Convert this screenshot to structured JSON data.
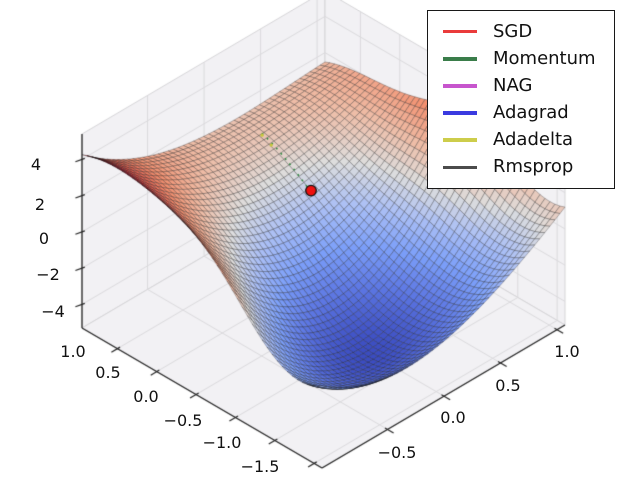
{
  "chart_data": {
    "type": "surface",
    "title": "",
    "description": "3D saddle-shaped loss surface with optimizer start point marker",
    "x_axis": {
      "ticks": [
        1.0,
        0.5,
        0.0,
        -0.5,
        -1.0,
        -1.5
      ],
      "tick_labels": [
        "1.0",
        "0.5",
        "0.0",
        "−0.5",
        "−1.0",
        "−1.5"
      ],
      "range": [
        -1.6,
        1.45
      ]
    },
    "y_axis": {
      "ticks": [
        -0.5,
        0.0,
        0.5,
        1.0
      ],
      "tick_labels": [
        "−0.5",
        "0.0",
        "0.5",
        "1.0"
      ],
      "range": [
        -1.08,
        1.07
      ]
    },
    "z_axis": {
      "ticks": [
        4,
        2,
        0,
        -2,
        -4
      ],
      "tick_labels": [
        "4",
        "2",
        "0",
        "−2",
        "−4"
      ],
      "range": [
        -5.3,
        5.4
      ]
    },
    "surface": {
      "model": "z = A(x)*(y-m(x))^2 + c3*y^3 + B(x);  A(x)=A_num/(1+A_k*(x+A_x0)^2);  m(x)=m_slope*x+m_offset;  B(x)=cubic(B)",
      "A_num": 4.8,
      "A_k": 0.8,
      "A_x0": 0.35,
      "m_slope": 0.2,
      "m_offset": -0.05,
      "y3_coeff": -0.55,
      "B": [
        -0.85,
        0.45,
        3.3,
        -1.9
      ],
      "mesh": 48,
      "colormap": "coolwarm"
    },
    "start_point": {
      "x": 0.45,
      "y": 0.25,
      "color": "#ee1111",
      "edge_color": "#101010",
      "radius": 5.3
    },
    "path_hints": [
      {
        "color": "#2c8a3e",
        "from": [
          0.45,
          0.25
        ],
        "to": [
          1.12,
          0.28
        ],
        "style": "dotted"
      },
      {
        "color": "#c9c93a",
        "points": [
          [
            0.97,
            0.26
          ],
          [
            1.1,
            0.27
          ]
        ]
      }
    ],
    "legend": {
      "position": "upper right",
      "entries": [
        {
          "label": "SGD",
          "color": "#ea3b3b"
        },
        {
          "label": "Momentum",
          "color": "#3a7d4a"
        },
        {
          "label": "NAG",
          "color": "#c755cd"
        },
        {
          "label": "Adagrad",
          "color": "#3a3ae0"
        },
        {
          "label": "Adadelta",
          "color": "#cdcd4b"
        },
        {
          "label": "Rmsprop",
          "color": "#4b4b4b"
        }
      ]
    }
  },
  "theme": {
    "background_color": "#ffffff",
    "pane_color": "#f2f1f4",
    "pane_edge_color": "#d6d5d8",
    "grid_color": "#dbdadd",
    "axis_color": "#262626",
    "mesh_edge_color": "rgba(15,15,15,0.5)",
    "colormap_stops": [
      [
        59,
        76,
        192
      ],
      [
        92,
        118,
        226
      ],
      [
        124,
        159,
        249
      ],
      [
        171,
        191,
        245
      ],
      [
        221,
        221,
        221
      ],
      [
        238,
        188,
        166
      ],
      [
        242,
        144,
        112
      ],
      [
        222,
        86,
        75
      ],
      [
        180,
        4,
        38
      ]
    ]
  }
}
